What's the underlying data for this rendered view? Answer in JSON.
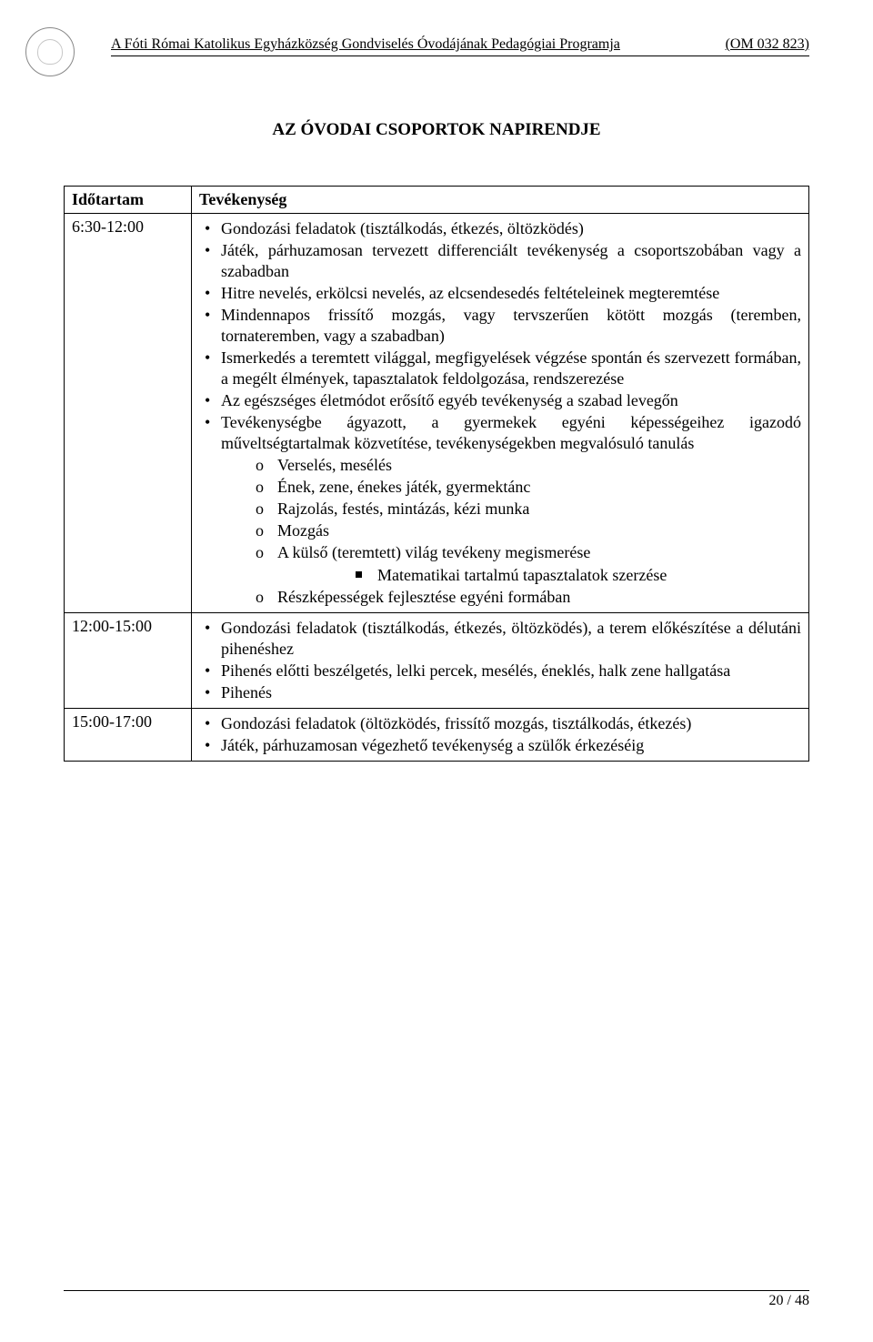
{
  "header": {
    "left": "A Fóti Római Katolikus Egyházközség Gondviselés Óvodájának Pedagógiai Programja",
    "right": "(OM 032 823)"
  },
  "title": "AZ ÓVODAI CSOPORTOK NAPIRENDJE",
  "table": {
    "headers": {
      "time": "Időtartam",
      "activity": "Tevékenység"
    },
    "rows": [
      {
        "time": "6:30-12:00",
        "bullets": [
          {
            "text": "Gondozási feladatok (tisztálkodás, étkezés, öltözködés)"
          },
          {
            "text": "Játék, párhuzamosan tervezett differenciált tevékenység a csoportszobában vagy a szabadban"
          },
          {
            "text": "Hitre nevelés, erkölcsi nevelés, az elcsendesedés feltételeinek megteremtése"
          },
          {
            "text": "Mindennapos frissítő mozgás, vagy tervszerűen kötött mozgás (teremben, tornateremben, vagy a szabadban)"
          },
          {
            "text": "Ismerkedés a teremtett világgal, megfigyelések végzése spontán és szervezett formában, a megélt élmények, tapasztalatok feldolgozása, rendszerezése"
          },
          {
            "text": "Az egészséges életmódot erősítő egyéb tevékenység a szabad levegőn"
          },
          {
            "text": "Tevékenységbe ágyazott, a gyermekek egyéni képességeihez igazodó műveltségtartalmak közvetítése, tevékenységekben megvalósuló tanulás",
            "sub_o": [
              {
                "text": "Verselés, mesélés"
              },
              {
                "text": "Ének, zene, énekes játék, gyermektánc"
              },
              {
                "text": "Rajzolás, festés, mintázás, kézi munka"
              },
              {
                "text": "Mozgás"
              },
              {
                "text": "A külső (teremtett) világ tevékeny megismerése",
                "sub_sq": [
                  {
                    "text": "Matematikai tartalmú tapasztalatok szerzése"
                  }
                ]
              },
              {
                "text": "Részképességek fejlesztése egyéni formában"
              }
            ]
          }
        ]
      },
      {
        "time": "12:00-15:00",
        "bullets": [
          {
            "text": "Gondozási feladatok (tisztálkodás, étkezés, öltözködés), a terem előkészítése a délutáni pihenéshez"
          },
          {
            "text": "Pihenés előtti beszélgetés, lelki percek, mesélés, éneklés, halk zene hallgatása"
          },
          {
            "text": "Pihenés"
          }
        ]
      },
      {
        "time": "15:00-17:00",
        "bullets": [
          {
            "text": "Gondozási feladatok (öltözködés, frissítő mozgás, tisztálkodás, étkezés)"
          },
          {
            "text": "Játék, párhuzamosan végezhető tevékenység a szülők érkezéséig"
          }
        ]
      }
    ]
  },
  "footer": {
    "page": "20 / 48"
  },
  "colors": {
    "text": "#000000",
    "background": "#ffffff",
    "border": "#000000"
  },
  "typography": {
    "family": "Times New Roman",
    "body_size_pt": 13,
    "title_size_pt": 14,
    "title_weight": "bold"
  }
}
